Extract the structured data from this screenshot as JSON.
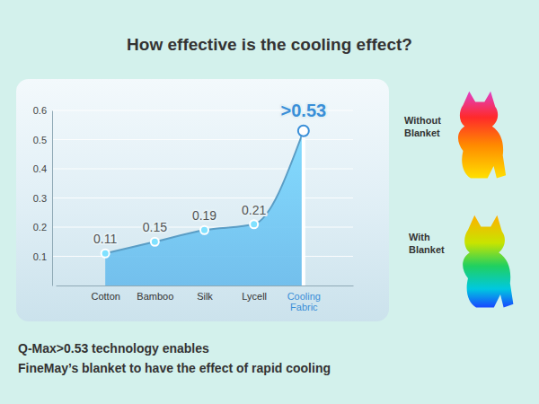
{
  "chart_data": {
    "type": "area",
    "title": "How effective is the cooling effect?",
    "categories": [
      "Cotton",
      "Bamboo",
      "Silk",
      "Lycell",
      "Cooling Fabric"
    ],
    "values": [
      0.11,
      0.15,
      0.19,
      0.21,
      0.53
    ],
    "value_labels": [
      "0.11",
      "0.15",
      "0.19",
      "0.21",
      ">0.53"
    ],
    "color": "#6bbcec",
    "ylim": [
      0,
      0.6
    ],
    "yticks": [
      0.1,
      0.2,
      0.3,
      0.4,
      0.5,
      0.6
    ],
    "grid": true,
    "data_labels": true,
    "annotations": [
      "Without Blanket",
      "With Blanket"
    ],
    "footnote": [
      "Q-Max>0.53 technology enables",
      "FineMay’s blanket to have the effect of rapid cooling"
    ]
  }
}
